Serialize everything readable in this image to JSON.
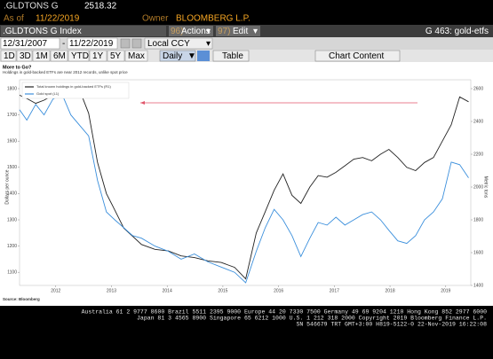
{
  "header": {
    "ticker": ".GLDTONS G",
    "price": "2518.32",
    "as_of_label": "As of",
    "as_of_date": "11/22/2019",
    "owner_label": "Owner",
    "owner": "BLOOMBERG L.P."
  },
  "toolbar": {
    "security": ".GLDTONS G Index",
    "actions_num": "96)",
    "actions": "Actions",
    "edit_num": "97)",
    "edit": "Edit",
    "page": "G 463: gold-etfs",
    "start_date": "12/31/2007",
    "end_date": "11/22/2019",
    "currency": "Local CCY",
    "periods": [
      "1D",
      "3D",
      "1M",
      "6M",
      "YTD",
      "1Y",
      "5Y",
      "Max"
    ],
    "frequency": "Daily",
    "table": "Table",
    "chart_content": "Chart Content"
  },
  "chart_data": {
    "type": "line",
    "title": "More to Go?",
    "subtitle": "Holdings in gold-backed ETFs are near 2012 records, unlike spot price",
    "source": "Source: Bloomberg",
    "ylabel": "Dollars per ounce",
    "y2label": "Metric tons",
    "x": [
      2011.85,
      2011.98,
      2012.14,
      2012.29,
      2012.45,
      2012.61,
      2012.77,
      2012.93,
      2013.09,
      2013.25,
      2013.41,
      2013.56,
      2013.72,
      2013.88,
      2014.04,
      2014.28,
      2014.52,
      2014.75,
      2014.99,
      2015.23,
      2015.47,
      2015.71,
      2015.91,
      2016.1,
      2016.26,
      2016.42,
      2016.58,
      2016.74,
      2016.9,
      2017.06,
      2017.21,
      2017.37,
      2017.53,
      2017.69,
      2017.85,
      2018.01,
      2018.17,
      2018.33,
      2018.48,
      2018.64,
      2018.8,
      2018.96,
      2019.12,
      2019.28,
      2019.44,
      2019.6,
      2019.75,
      2019.91
    ],
    "xlim": [
      2011.85,
      2019.95
    ],
    "xticks": [
      {
        "value": 2012.5,
        "label": "2012"
      },
      {
        "value": 2013.5,
        "label": "2013"
      },
      {
        "value": 2014.5,
        "label": "2014"
      },
      {
        "value": 2015.5,
        "label": "2015"
      },
      {
        "value": 2016.5,
        "label": "2016"
      },
      {
        "value": 2017.5,
        "label": "2017"
      },
      {
        "value": 2018.5,
        "label": "2018"
      },
      {
        "value": 2019.5,
        "label": "2019"
      }
    ],
    "ylim": [
      1050,
      1800
    ],
    "yticks": [
      1100,
      1200,
      1300,
      1400,
      1500,
      1600,
      1700,
      1800
    ],
    "y2lim": [
      1400,
      2600
    ],
    "y2ticks": [
      1400,
      1600,
      1800,
      2000,
      2200,
      2400,
      2600
    ],
    "series": [
      {
        "name": "Total known holdings in gold-backed ETFs (R1)",
        "color": "#222222",
        "axis": "y2",
        "values": [
          2560,
          2540,
          2510,
          2530,
          2560,
          2575,
          2585,
          2590,
          2450,
          2150,
          1960,
          1860,
          1750,
          1700,
          1650,
          1620,
          1610,
          1580,
          1570,
          1550,
          1540,
          1510,
          1440,
          1720,
          1850,
          1980,
          2080,
          1950,
          1900,
          2000,
          2070,
          2060,
          2090,
          2130,
          2170,
          2180,
          2160,
          2200,
          2230,
          2180,
          2120,
          2100,
          2150,
          2180,
          2280,
          2380,
          2550,
          2520
        ]
      },
      {
        "name": "Gold spot (L1)",
        "color": "#3b8fdc",
        "values": [
          1720,
          1680,
          1740,
          1700,
          1760,
          1780,
          1700,
          1660,
          1620,
          1450,
          1330,
          1300,
          1270,
          1240,
          1230,
          1200,
          1180,
          1150,
          1170,
          1140,
          1120,
          1100,
          1060,
          1180,
          1270,
          1340,
          1300,
          1240,
          1160,
          1230,
          1290,
          1280,
          1310,
          1280,
          1300,
          1320,
          1330,
          1300,
          1260,
          1220,
          1210,
          1240,
          1300,
          1330,
          1380,
          1520,
          1510,
          1460
        ]
      }
    ]
  },
  "footer": {
    "lines": [
      "Australia 61 2 9777 8600 Brazil 5511 2395 9000 Europe 44 20 7330 7500 Germany 49 69 9204 1210 Hong Kong 852 2977 6000",
      "Japan 81 3 4565 8900     Singapore 65 6212 1000     U.S. 1 212 318 2000          Copyright 2019 Bloomberg Finance L.P.",
      "SN 546679 TRT  GMT+3:00 H819-5122-0 22-Nov-2019 16:22:08"
    ]
  }
}
